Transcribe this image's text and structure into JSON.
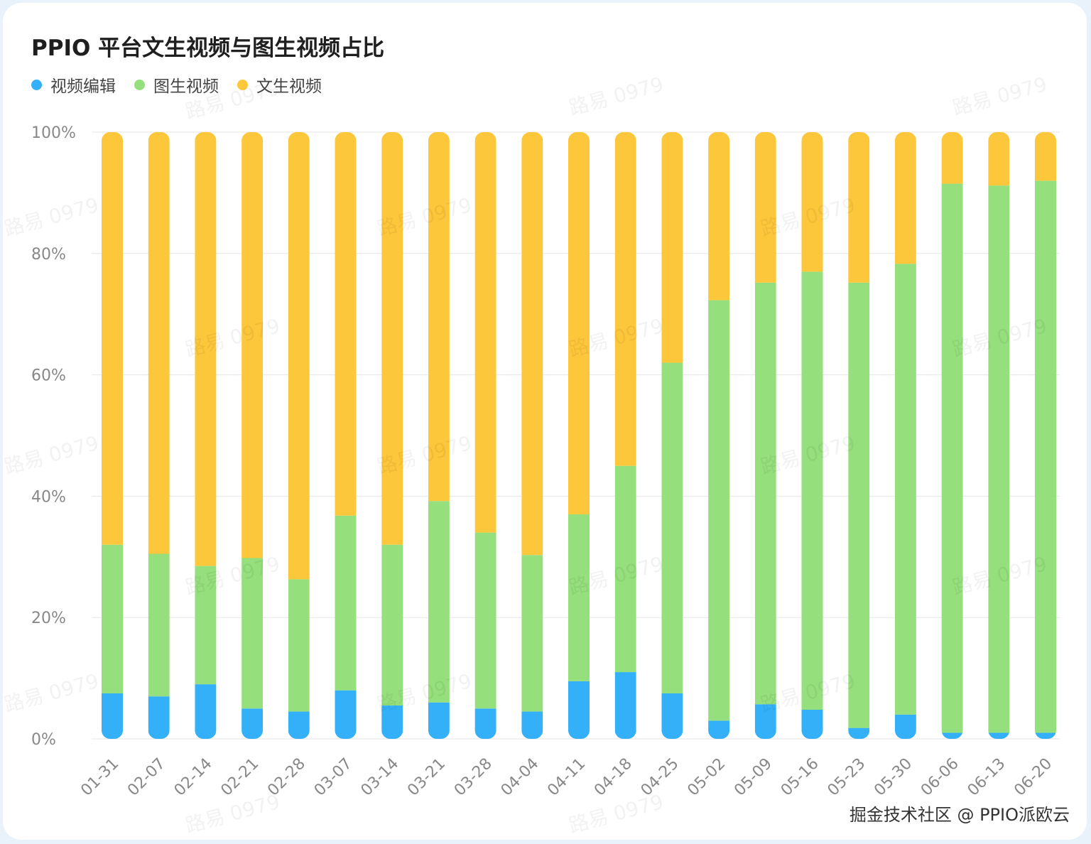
{
  "chart_data": {
    "type": "bar",
    "stacked": true,
    "title": "PPIO 平台文生视频与图生视频占比",
    "categories": [
      "01-31",
      "02-07",
      "02-14",
      "02-21",
      "02-28",
      "03-07",
      "03-14",
      "03-21",
      "03-28",
      "04-04",
      "04-11",
      "04-18",
      "04-25",
      "05-02",
      "05-09",
      "05-16",
      "05-23",
      "05-30",
      "06-06",
      "06-13",
      "06-20"
    ],
    "series": [
      {
        "name": "视频编辑",
        "color": "#33b0f7",
        "values": [
          7.5,
          7,
          9,
          5,
          4.5,
          8,
          5.5,
          6,
          5,
          4.5,
          9.5,
          11,
          7.5,
          3,
          5.7,
          4.8,
          1.8,
          4,
          1,
          1,
          1
        ]
      },
      {
        "name": "图生视频",
        "color": "#95df7d",
        "values": [
          24.5,
          23.5,
          19.5,
          24.8,
          21.8,
          28.8,
          26.5,
          33.2,
          29,
          25.8,
          27.5,
          34,
          54.5,
          69.3,
          69.5,
          72.2,
          73.4,
          74.3,
          90.5,
          90.2,
          91
        ]
      },
      {
        "name": "文生视频",
        "color": "#fdc73b",
        "values": [
          68,
          69.5,
          71.5,
          70.2,
          73.7,
          63.2,
          68,
          60.8,
          66,
          69.7,
          63,
          55,
          38,
          27.7,
          24.8,
          23,
          24.8,
          21.7,
          8.5,
          8.8,
          8
        ]
      }
    ],
    "ylim": [
      0,
      100
    ],
    "yticks": [
      0,
      20,
      40,
      60,
      80,
      100
    ],
    "ytick_labels": [
      "0%",
      "20%",
      "40%",
      "60%",
      "80%",
      "100%"
    ],
    "xlabel": "",
    "ylabel": "",
    "legend_position": "top-left",
    "grid": true
  },
  "watermark": "路易 0979",
  "credit": "掘金技术社区 @ PPIO派欧云"
}
